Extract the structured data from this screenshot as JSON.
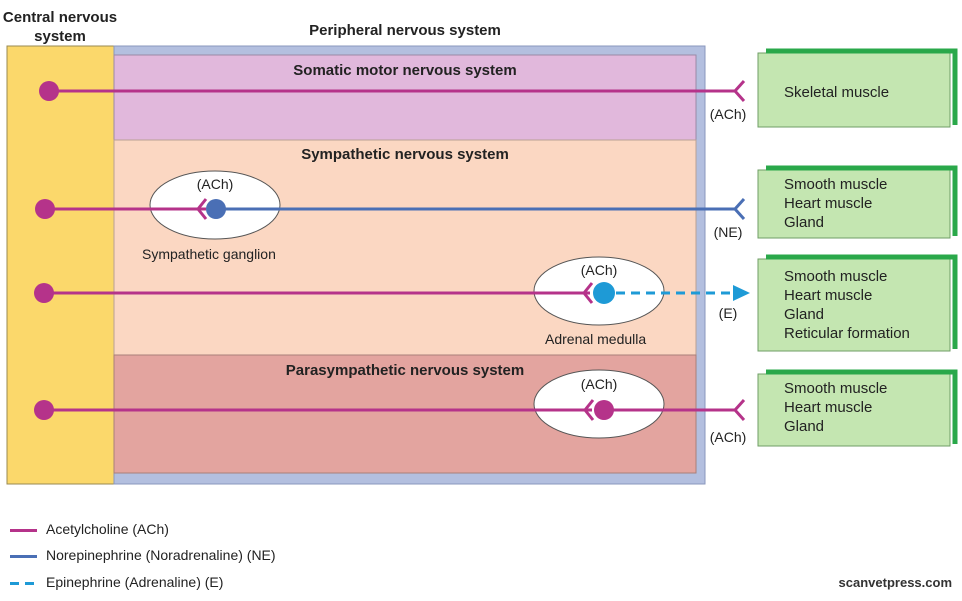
{
  "titles": {
    "cns": "Central nervous system",
    "pns": "Peripheral nervous system"
  },
  "sections": {
    "somatic": "Somatic motor nervous system",
    "sympathetic": "Sympathetic nervous system",
    "parasympathetic": "Parasympathetic nervous system"
  },
  "ganglia": {
    "sympathetic_label": "Sympathetic ganglion",
    "adrenal_label": "Adrenal medulla",
    "ach": "(ACh)"
  },
  "transmitters": {
    "somatic": "(ACh)",
    "sympathetic": "(NE)",
    "adrenal": "(E)",
    "parasympathetic": "(ACh)"
  },
  "targets": {
    "somatic": [
      "Skeletal muscle"
    ],
    "sympathetic": [
      "Smooth muscle",
      "Heart muscle",
      "Gland"
    ],
    "adrenal": [
      "Smooth muscle",
      "Heart muscle",
      "Gland",
      "Reticular formation"
    ],
    "parasympathetic": [
      "Smooth muscle",
      "Heart muscle",
      "Gland"
    ]
  },
  "legend": [
    {
      "label": "Acetylcholine (ACh)",
      "color": "#b5338a",
      "style": "solid"
    },
    {
      "label": "Norepinephrine (Noradrenaline) (NE)",
      "color": "#4a6fb5",
      "style": "solid"
    },
    {
      "label": "Epinephrine (Adrenaline) (E)",
      "color": "#1e9ad6",
      "style": "dashed"
    }
  ],
  "watermark": "scanvetpress.com",
  "colors": {
    "ach": "#b5338a",
    "ne": "#4a6fb5",
    "epi": "#1e9ad6",
    "cns": "#fbd86b",
    "pns_frame": "#b3bfdf",
    "somatic_bg": "#e1b8dc",
    "sympathetic_bg": "#fbd7c2",
    "parasympathetic_bg": "#e3a49f",
    "target_bg": "#c4e6b1",
    "target_accent": "#2aa84a"
  }
}
